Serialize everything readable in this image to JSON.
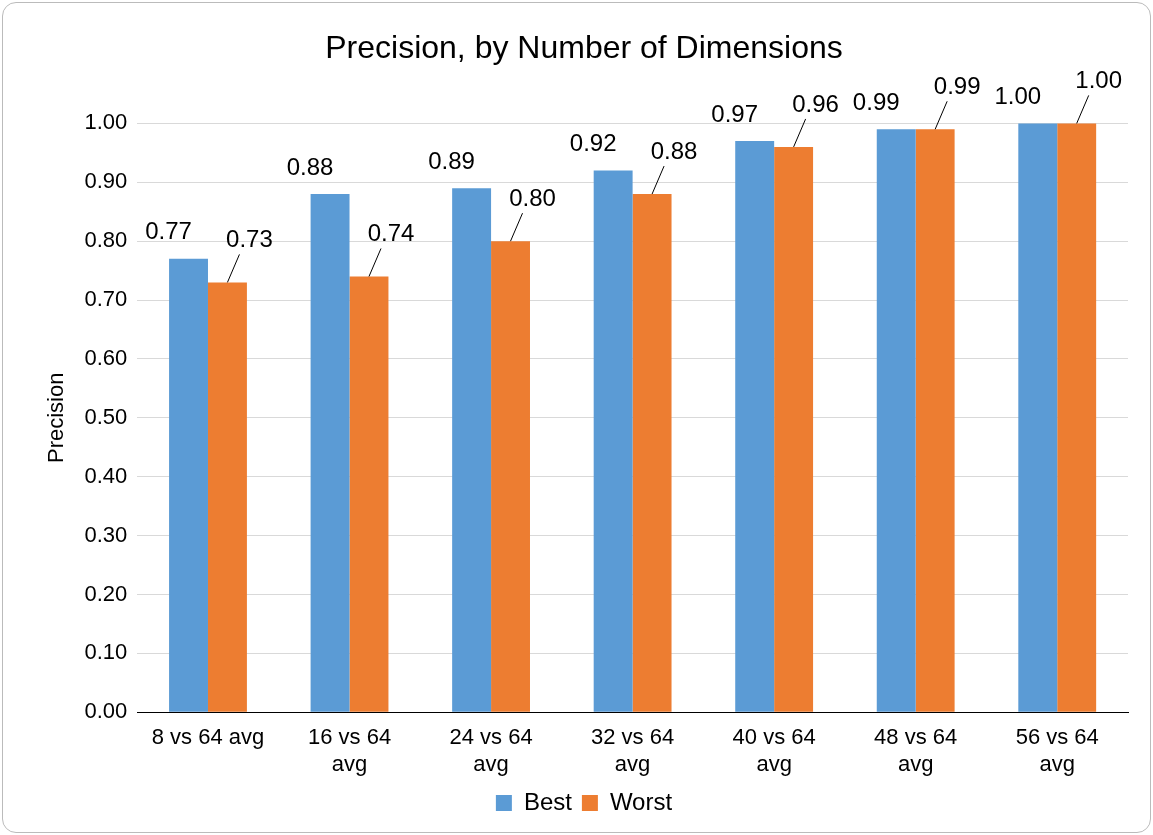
{
  "chart_data": {
    "type": "bar",
    "title": "Precision, by Number of Dimensions",
    "ylabel": "Precision",
    "categories": [
      "8 vs 64 avg",
      "16 vs 64 avg",
      "24 vs 64 avg",
      "32 vs 64 avg",
      "40 vs 64 avg",
      "48 vs 64 avg",
      "56 vs 64 avg"
    ],
    "series": [
      {
        "name": "Best",
        "color": "#5b9bd5",
        "values": [
          0.77,
          0.88,
          0.89,
          0.92,
          0.97,
          0.99,
          1.0
        ],
        "value_labels": [
          "0.77",
          "0.88",
          "0.89",
          "0.92",
          "0.97",
          "0.99",
          "1.00"
        ]
      },
      {
        "name": "Worst",
        "color": "#ed7d31",
        "values": [
          0.73,
          0.74,
          0.8,
          0.88,
          0.96,
          0.99,
          1.0
        ],
        "value_labels": [
          "0.73",
          "0.74",
          "0.80",
          "0.88",
          "0.96",
          "0.99",
          "1.00"
        ]
      }
    ],
    "ylim": [
      0,
      1.0
    ],
    "yticks": [
      {
        "value": 0,
        "label": "0.00"
      },
      {
        "value": 0.1,
        "label": "0.10"
      },
      {
        "value": 0.2,
        "label": "0.20"
      },
      {
        "value": 0.3,
        "label": "0.30"
      },
      {
        "value": 0.4,
        "label": "0.40"
      },
      {
        "value": 0.5,
        "label": "0.50"
      },
      {
        "value": 0.6,
        "label": "0.60"
      },
      {
        "value": 0.7,
        "label": "0.70"
      },
      {
        "value": 0.8,
        "label": "0.80"
      },
      {
        "value": 0.9,
        "label": "0.90"
      },
      {
        "value": 1.0,
        "label": "1.00"
      }
    ],
    "grid": "y",
    "legend": "bottom"
  }
}
